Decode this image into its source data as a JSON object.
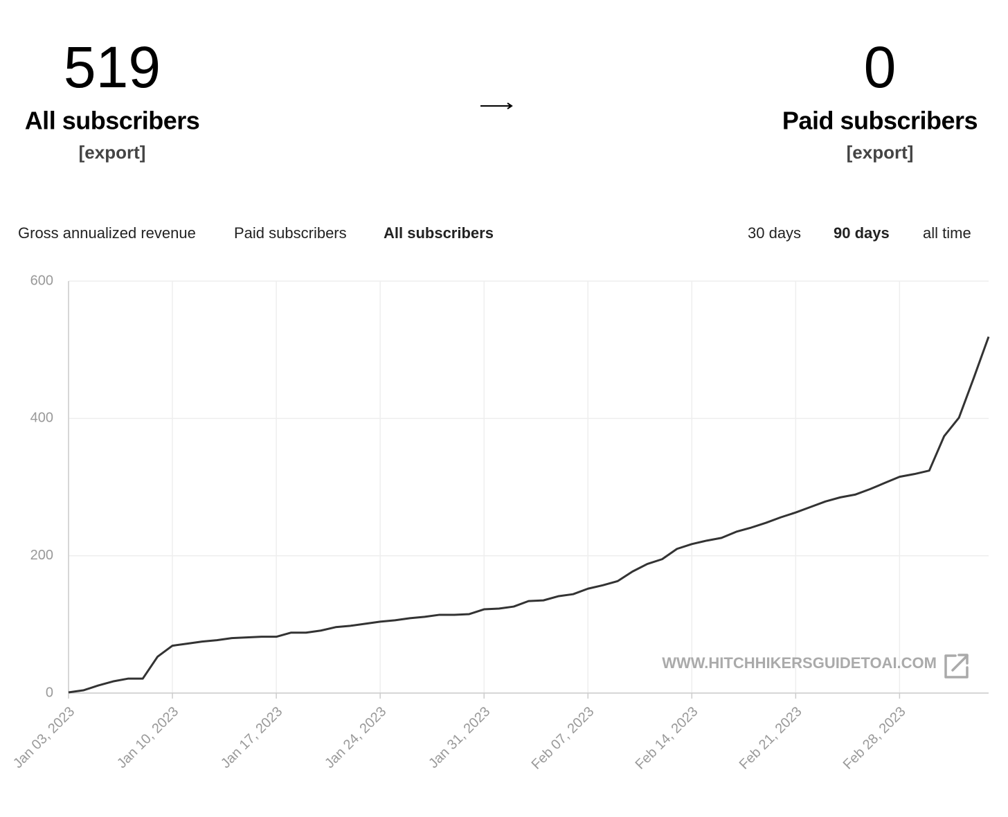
{
  "stats": [
    {
      "value": "519",
      "label": "All subscribers",
      "action": "[export]"
    },
    {
      "value": "0",
      "label": "Paid subscribers",
      "action": "[export]"
    }
  ],
  "tabs": [
    "Gross annualized revenue",
    "Paid subscribers",
    "All subscribers"
  ],
  "active_tab": 2,
  "ranges": [
    "30 days",
    "90 days",
    "all time"
  ],
  "active_range": 1,
  "watermark": "WWW.HITCHHIKERSGUIDETOAI.COM",
  "chart_data": {
    "type": "line",
    "color": "#333333",
    "grid": true,
    "x": [
      "2023-01-03",
      "2023-01-04",
      "2023-01-05",
      "2023-01-06",
      "2023-01-07",
      "2023-01-08",
      "2023-01-09",
      "2023-01-10",
      "2023-01-11",
      "2023-01-12",
      "2023-01-13",
      "2023-01-14",
      "2023-01-15",
      "2023-01-16",
      "2023-01-17",
      "2023-01-18",
      "2023-01-19",
      "2023-01-20",
      "2023-01-21",
      "2023-01-22",
      "2023-01-23",
      "2023-01-24",
      "2023-01-25",
      "2023-01-26",
      "2023-01-27",
      "2023-01-28",
      "2023-01-29",
      "2023-01-30",
      "2023-01-31",
      "2023-02-01",
      "2023-02-02",
      "2023-02-03",
      "2023-02-04",
      "2023-02-05",
      "2023-02-06",
      "2023-02-07",
      "2023-02-08",
      "2023-02-09",
      "2023-02-10",
      "2023-02-11",
      "2023-02-12",
      "2023-02-13",
      "2023-02-14",
      "2023-02-15",
      "2023-02-16",
      "2023-02-17",
      "2023-02-18",
      "2023-02-19",
      "2023-02-20",
      "2023-02-21",
      "2023-02-22",
      "2023-02-23",
      "2023-02-24",
      "2023-02-25",
      "2023-02-26",
      "2023-02-27",
      "2023-02-28",
      "2023-03-01",
      "2023-03-02",
      "2023-03-03",
      "2023-03-04",
      "2023-03-05",
      "2023-03-06"
    ],
    "values": [
      1,
      4,
      11,
      17,
      21,
      21,
      53,
      69,
      72,
      75,
      77,
      80,
      81,
      82,
      82,
      88,
      88,
      91,
      96,
      98,
      101,
      104,
      106,
      109,
      111,
      114,
      114,
      115,
      122,
      123,
      126,
      134,
      135,
      141,
      144,
      152,
      157,
      163,
      177,
      188,
      195,
      210,
      217,
      222,
      226,
      235,
      241,
      248,
      256,
      263,
      271,
      279,
      285,
      289,
      297,
      306,
      315,
      319,
      324,
      374,
      401,
      459,
      519
    ],
    "xlim": [
      "2023-01-03",
      "2023-03-06"
    ],
    "xticks": [
      {
        "value": "2023-01-03",
        "label": "Jan 03, 2023"
      },
      {
        "value": "2023-01-10",
        "label": "Jan 10, 2023"
      },
      {
        "value": "2023-01-17",
        "label": "Jan 17, 2023"
      },
      {
        "value": "2023-01-24",
        "label": "Jan 24, 2023"
      },
      {
        "value": "2023-01-31",
        "label": "Jan 31, 2023"
      },
      {
        "value": "2023-02-07",
        "label": "Feb 07, 2023"
      },
      {
        "value": "2023-02-14",
        "label": "Feb 14, 2023"
      },
      {
        "value": "2023-02-21",
        "label": "Feb 21, 2023"
      },
      {
        "value": "2023-02-28",
        "label": "Feb 28, 2023"
      }
    ],
    "ylim": [
      0,
      600
    ],
    "yticks": [
      0,
      200,
      400,
      600
    ]
  }
}
